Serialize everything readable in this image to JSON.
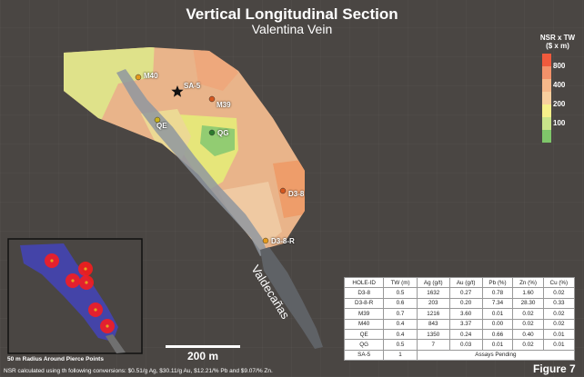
{
  "header": {
    "title": "Vertical Longitudinal Section",
    "subtitle": "Valentina Vein"
  },
  "legend": {
    "heading_line1": "NSR x TW",
    "heading_line2": "($ x m)",
    "ticks": [
      "800",
      "400",
      "200",
      "100"
    ],
    "colors": [
      "#f05a3c",
      "#f3926a",
      "#f5b88a",
      "#f8cf9e",
      "#f6f08a",
      "#c9e48a",
      "#7fc66a"
    ]
  },
  "points": [
    {
      "label": "M40",
      "color": "#e39a1e"
    },
    {
      "label": "SA-5",
      "color": "#111111"
    },
    {
      "label": "M39",
      "color": "#d4571e"
    },
    {
      "label": "QE",
      "color": "#c9b21e"
    },
    {
      "label": "QG",
      "color": "#2d7a2d"
    },
    {
      "label": "D3-8",
      "color": "#d4571e"
    },
    {
      "label": "D3-8-R",
      "color": "#e39a1e"
    }
  ],
  "river_label": "Valdecañas",
  "inset_caption": "50 m Radius Around Pierce Points",
  "scale_label": "200 m",
  "table": {
    "headers": [
      "HOLE-ID",
      "TW (m)",
      "Ag (g/t)",
      "Au (g/t)",
      "Pb (%)",
      "Zn (%)",
      "Cu (%)"
    ],
    "rows": [
      [
        "D3-8",
        "0.5",
        "1632",
        "0.27",
        "0.78",
        "1.60",
        "0.02"
      ],
      [
        "D3-8-R",
        "0.6",
        "203",
        "0.20",
        "7.34",
        "28.30",
        "0.33"
      ],
      [
        "M39",
        "0.7",
        "1216",
        "3.60",
        "0.01",
        "0.02",
        "0.02"
      ],
      [
        "M40",
        "0.4",
        "843",
        "3.37",
        "0.00",
        "0.02",
        "0.02"
      ],
      [
        "QE",
        "0.4",
        "1350",
        "0.24",
        "0.66",
        "0.40",
        "0.01"
      ],
      [
        "QG",
        "0.5",
        "7",
        "0.03",
        "0.01",
        "0.02",
        "0.01"
      ]
    ],
    "pending_row": {
      "id": "SA-5",
      "tw": "1",
      "note": "Assays Pending"
    }
  },
  "footnote": "NSR calculated using th following conversions: $0.51/g Ag, $30.11/g Au,  $12.21/% Pb and $9.07/% Zn.",
  "figure_label": "Figure 7"
}
